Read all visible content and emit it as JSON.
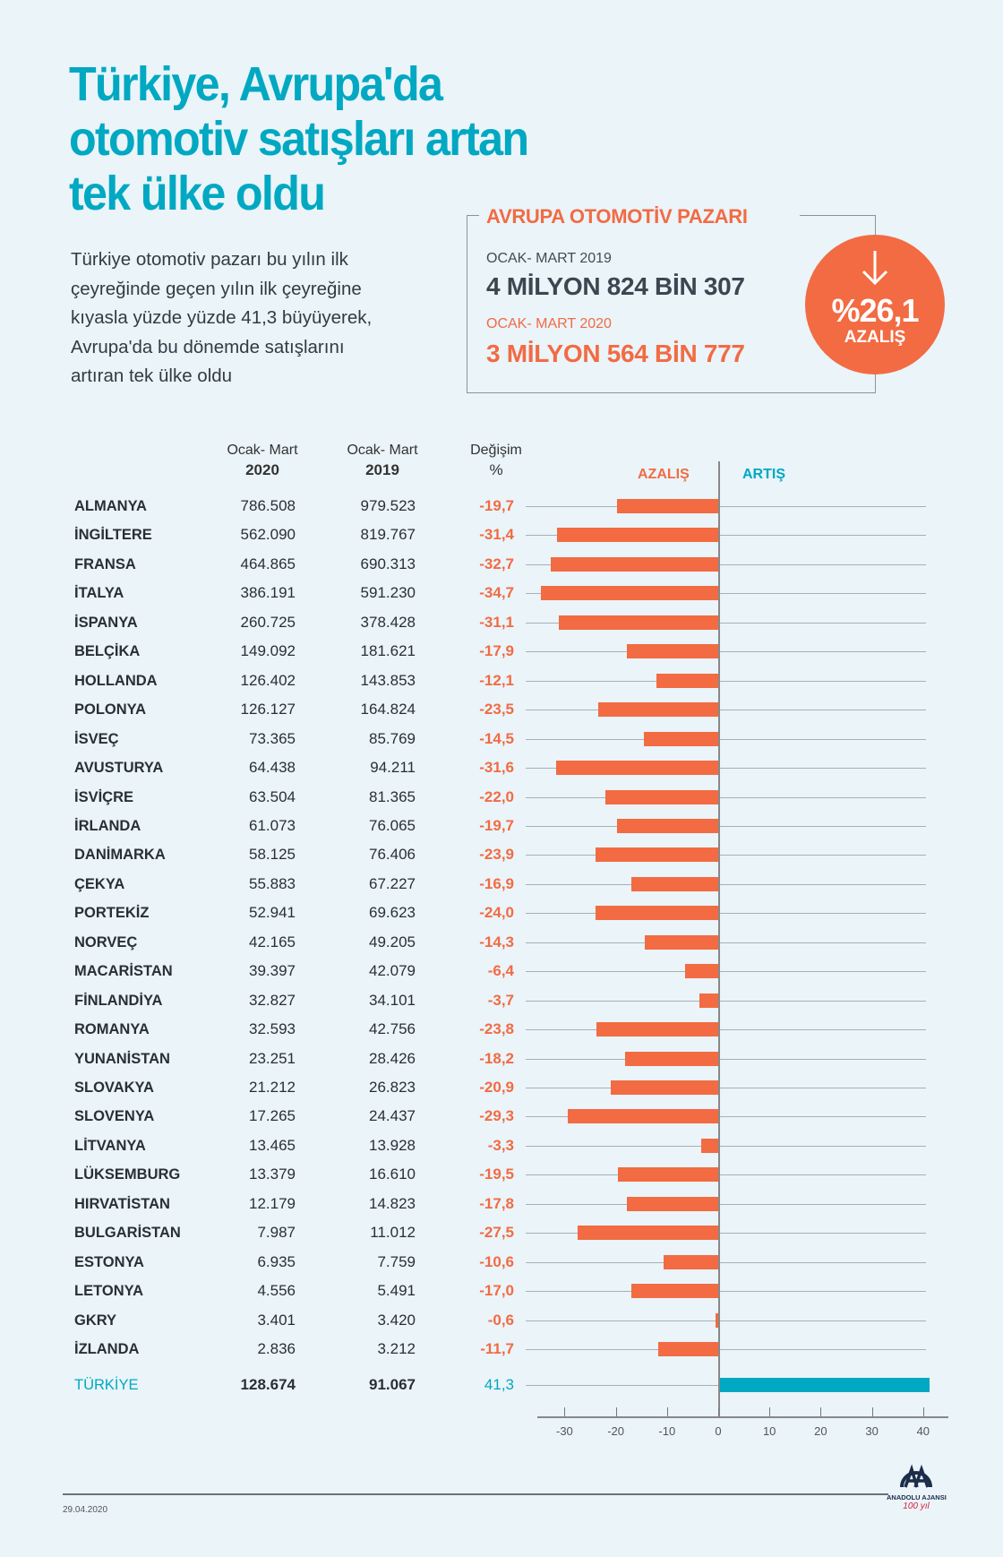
{
  "title_lines": [
    "Türkiye, Avrupa'da",
    "otomotiv satışları artan",
    "tek ülke oldu"
  ],
  "intro_lines": [
    "Türkiye otomotiv pazarı bu yılın ilk",
    "çeyreğinde geçen yılın ilk çeyreğine",
    "kıyasla yüzde yüzde 41,3 büyüyerek,",
    "Avrupa'da bu dönemde satışlarını",
    "artıran tek ülke oldu"
  ],
  "summary": {
    "title": "AVRUPA OTOMOTİV PAZARI",
    "label_2019": "OCAK- MART 2019",
    "value_2019": "4 MİLYON 824 BİN 307",
    "label_2020": "OCAK- MART 2020",
    "value_2020": "3 MİLYON 564 BİN 777",
    "change": "%26,1",
    "change_label": "AZALIŞ",
    "icon": "arrow-down-icon"
  },
  "colors": {
    "teal": "#00a8c2",
    "orange": "#f26b43",
    "background": "#eaf4f9"
  },
  "chart_data": {
    "type": "bar",
    "orientation": "horizontal",
    "columns": [
      {
        "top": "Ocak- Mart",
        "bottom": "2020"
      },
      {
        "top": "Ocak- Mart",
        "bottom": "2019"
      },
      {
        "top": "Değişim",
        "bottom": "%"
      }
    ],
    "legend": {
      "negative": "AZALIŞ",
      "positive": "ARTIŞ"
    },
    "xlim": [
      -35,
      42
    ],
    "xticks": [
      -30,
      -20,
      -10,
      0,
      10,
      20,
      30,
      40
    ],
    "rows": [
      {
        "country": "ALMANYA",
        "v2020": "786.508",
        "v2019": "979.523",
        "change_label": "-19,7",
        "change": -19.7
      },
      {
        "country": "İNGİLTERE",
        "v2020": "562.090",
        "v2019": "819.767",
        "change_label": "-31,4",
        "change": -31.4
      },
      {
        "country": "FRANSA",
        "v2020": "464.865",
        "v2019": "690.313",
        "change_label": "-32,7",
        "change": -32.7
      },
      {
        "country": "İTALYA",
        "v2020": "386.191",
        "v2019": "591.230",
        "change_label": "-34,7",
        "change": -34.7
      },
      {
        "country": "İSPANYA",
        "v2020": "260.725",
        "v2019": "378.428",
        "change_label": "-31,1",
        "change": -31.1
      },
      {
        "country": "BELÇİKA",
        "v2020": "149.092",
        "v2019": "181.621",
        "change_label": "-17,9",
        "change": -17.9
      },
      {
        "country": "HOLLANDA",
        "v2020": "126.402",
        "v2019": "143.853",
        "change_label": "-12,1",
        "change": -12.1
      },
      {
        "country": "POLONYA",
        "v2020": "126.127",
        "v2019": "164.824",
        "change_label": "-23,5",
        "change": -23.5
      },
      {
        "country": "İSVEÇ",
        "v2020": "73.365",
        "v2019": "85.769",
        "change_label": "-14,5",
        "change": -14.5
      },
      {
        "country": "AVUSTURYA",
        "v2020": "64.438",
        "v2019": "94.211",
        "change_label": "-31,6",
        "change": -31.6
      },
      {
        "country": "İSVİÇRE",
        "v2020": "63.504",
        "v2019": "81.365",
        "change_label": "-22,0",
        "change": -22.0
      },
      {
        "country": "İRLANDA",
        "v2020": "61.073",
        "v2019": "76.065",
        "change_label": "-19,7",
        "change": -19.7
      },
      {
        "country": "DANİMARKA",
        "v2020": "58.125",
        "v2019": "76.406",
        "change_label": "-23,9",
        "change": -23.9
      },
      {
        "country": "ÇEKYA",
        "v2020": "55.883",
        "v2019": "67.227",
        "change_label": "-16,9",
        "change": -16.9
      },
      {
        "country": "PORTEKİZ",
        "v2020": "52.941",
        "v2019": "69.623",
        "change_label": "-24,0",
        "change": -24.0
      },
      {
        "country": "NORVEÇ",
        "v2020": "42.165",
        "v2019": "49.205",
        "change_label": "-14,3",
        "change": -14.3
      },
      {
        "country": "MACARİSTAN",
        "v2020": "39.397",
        "v2019": "42.079",
        "change_label": "-6,4",
        "change": -6.4
      },
      {
        "country": "FİNLANDİYA",
        "v2020": "32.827",
        "v2019": "34.101",
        "change_label": "-3,7",
        "change": -3.7
      },
      {
        "country": "ROMANYA",
        "v2020": "32.593",
        "v2019": "42.756",
        "change_label": "-23,8",
        "change": -23.8
      },
      {
        "country": "YUNANİSTAN",
        "v2020": "23.251",
        "v2019": "28.426",
        "change_label": "-18,2",
        "change": -18.2
      },
      {
        "country": "SLOVAKYA",
        "v2020": "21.212",
        "v2019": "26.823",
        "change_label": "-20,9",
        "change": -20.9
      },
      {
        "country": "SLOVENYA",
        "v2020": "17.265",
        "v2019": "24.437",
        "change_label": "-29,3",
        "change": -29.3
      },
      {
        "country": "LİTVANYA",
        "v2020": "13.465",
        "v2019": "13.928",
        "change_label": "-3,3",
        "change": -3.3
      },
      {
        "country": "LÜKSEMBURG",
        "v2020": "13.379",
        "v2019": "16.610",
        "change_label": "-19,5",
        "change": -19.5
      },
      {
        "country": "HIRVATİSTAN",
        "v2020": "12.179",
        "v2019": "14.823",
        "change_label": "-17,8",
        "change": -17.8
      },
      {
        "country": "BULGARİSTAN",
        "v2020": "7.987",
        "v2019": "11.012",
        "change_label": "-27,5",
        "change": -27.5
      },
      {
        "country": "ESTONYA",
        "v2020": "6.935",
        "v2019": "7.759",
        "change_label": "-10,6",
        "change": -10.6
      },
      {
        "country": "LETONYA",
        "v2020": "4.556",
        "v2019": "5.491",
        "change_label": "-17,0",
        "change": -17.0
      },
      {
        "country": "GKRY",
        "v2020": "3.401",
        "v2019": "3.420",
        "change_label": "-0,6",
        "change": -0.6
      },
      {
        "country": "İZLANDA",
        "v2020": "2.836",
        "v2019": "3.212",
        "change_label": "-11,7",
        "change": -11.7
      }
    ],
    "highlight": {
      "country": "TÜRKİYE",
      "v2020": "128.674",
      "v2019": "91.067",
      "change_label": "41,3",
      "change": 41.3
    }
  },
  "footer": {
    "date": "29.04.2020",
    "logo_text": "ANADOLU AJANSI",
    "logo_sub": "100 yıl"
  }
}
